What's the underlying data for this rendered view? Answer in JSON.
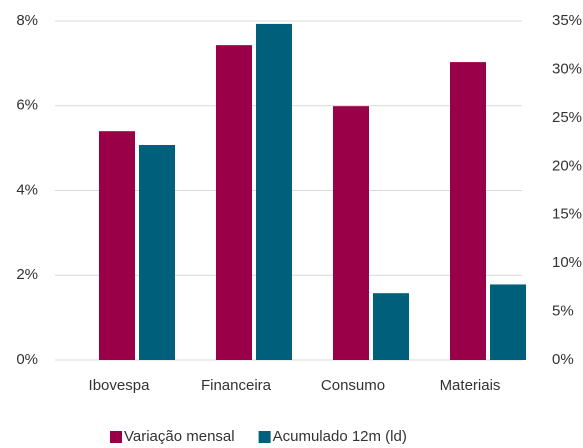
{
  "chart_data": {
    "type": "bar",
    "categories": [
      "Ibovespa",
      "Financeira",
      "Consumo",
      "Materiais"
    ],
    "series": [
      {
        "name": "Variação mensal",
        "color": "#990047",
        "values": [
          5.4,
          7.43,
          5.99,
          7.03
        ]
      },
      {
        "name": "Acumulado 12m (ld)",
        "color": "#005f7a",
        "axis": "y2",
        "values": [
          22.2,
          34.7,
          6.9,
          7.8
        ]
      }
    ],
    "ylim": [
      0,
      8
    ],
    "yticks": [
      {
        "value": 0,
        "label": "0%"
      },
      {
        "value": 2,
        "label": "2%"
      },
      {
        "value": 4,
        "label": "4%"
      },
      {
        "value": 6,
        "label": "6%"
      },
      {
        "value": 8,
        "label": "8%"
      }
    ],
    "y2lim": [
      0,
      35
    ],
    "y2ticks": [
      {
        "value": 0,
        "label": "0%"
      },
      {
        "value": 5,
        "label": "5%"
      },
      {
        "value": 10,
        "label": "10%"
      },
      {
        "value": 15,
        "label": "15%"
      },
      {
        "value": 20,
        "label": "20%"
      },
      {
        "value": 25,
        "label": "25%"
      },
      {
        "value": 30,
        "label": "30%"
      },
      {
        "value": 35,
        "label": "35%"
      }
    ],
    "grid": true,
    "legend": "bottom"
  }
}
